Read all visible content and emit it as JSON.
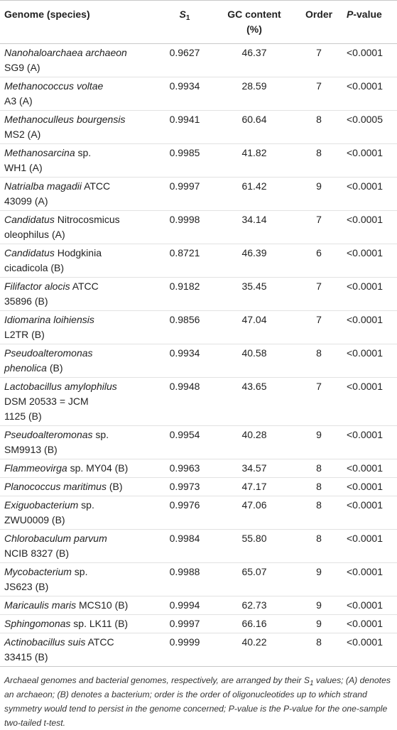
{
  "headers": {
    "genome": "Genome (species)",
    "s_letter": "S",
    "s_sub": "1",
    "gc_line1": "GC content",
    "gc_line2": "(%)",
    "order": "Order",
    "p_italic": "P",
    "p_rest": "-value"
  },
  "rows": [
    {
      "parts": [
        {
          "t": "Nanohaloarchaea archaeon",
          "i": true
        },
        {
          "t": "SG9 (A)",
          "br": true
        }
      ],
      "s1": "0.9627",
      "gc": "46.37",
      "order": "7",
      "p": "<0.0001"
    },
    {
      "parts": [
        {
          "t": "Methanococcus voltae",
          "i": true
        },
        {
          "t": "A3 (A)",
          "br": true
        }
      ],
      "s1": "0.9934",
      "gc": "28.59",
      "order": "7",
      "p": "<0.0001"
    },
    {
      "parts": [
        {
          "t": "Methanoculleus bourgensis",
          "i": true
        },
        {
          "t": "MS2 (A)",
          "br": true
        }
      ],
      "s1": "0.9941",
      "gc": "60.64",
      "order": "8",
      "p": "<0.0005"
    },
    {
      "parts": [
        {
          "t": "Methanosarcina",
          "i": true
        },
        {
          "t": " sp."
        },
        {
          "t": "WH1 (A)",
          "br": true
        }
      ],
      "s1": "0.9985",
      "gc": "41.82",
      "order": "8",
      "p": "<0.0001"
    },
    {
      "parts": [
        {
          "t": "Natrialba magadii",
          "i": true
        },
        {
          "t": " ATCC"
        },
        {
          "t": "43099 (A)",
          "br": true
        }
      ],
      "s1": "0.9997",
      "gc": "61.42",
      "order": "9",
      "p": "<0.0001"
    },
    {
      "parts": [
        {
          "t": "Candidatus",
          "i": true
        },
        {
          "t": " Nitrocosmicus"
        },
        {
          "t": "oleophilus (A)",
          "br": true
        }
      ],
      "s1": "0.9998",
      "gc": "34.14",
      "order": "7",
      "p": "<0.0001"
    },
    {
      "parts": [
        {
          "t": "Candidatus",
          "i": true
        },
        {
          "t": " Hodgkinia"
        },
        {
          "t": "cicadicola (B)",
          "br": true
        }
      ],
      "s1": "0.8721",
      "gc": "46.39",
      "order": "6",
      "p": "<0.0001"
    },
    {
      "parts": [
        {
          "t": "Filifactor alocis",
          "i": true
        },
        {
          "t": " ATCC"
        },
        {
          "t": "35896 (B)",
          "br": true
        }
      ],
      "s1": "0.9182",
      "gc": "35.45",
      "order": "7",
      "p": "<0.0001"
    },
    {
      "parts": [
        {
          "t": "Idiomarina loihiensis",
          "i": true
        },
        {
          "t": "L2TR (B)",
          "br": true
        }
      ],
      "s1": "0.9856",
      "gc": "47.04",
      "order": "7",
      "p": "<0.0001"
    },
    {
      "parts": [
        {
          "t": "Pseudoalteromonas",
          "i": true
        },
        {
          "t": "phenolica",
          "i": true,
          "br": true
        },
        {
          "t": " (B)"
        }
      ],
      "s1": "0.9934",
      "gc": "40.58",
      "order": "8",
      "p": "<0.0001"
    },
    {
      "parts": [
        {
          "t": "Lactobacillus amylophilus",
          "i": true
        },
        {
          "t": "DSM 20533 = JCM",
          "br": true
        },
        {
          "t": "1125 (B)",
          "br": true
        }
      ],
      "s1": "0.9948",
      "gc": "43.65",
      "order": "7",
      "p": "<0.0001"
    },
    {
      "parts": [
        {
          "t": "Pseudoalteromonas",
          "i": true
        },
        {
          "t": " sp."
        },
        {
          "t": "SM9913 (B)",
          "br": true
        }
      ],
      "s1": "0.9954",
      "gc": "40.28",
      "order": "9",
      "p": "<0.0001"
    },
    {
      "parts": [
        {
          "t": "Flammeovirga",
          "i": true
        },
        {
          "t": " sp. MY04 (B)"
        }
      ],
      "s1": "0.9963",
      "gc": "34.57",
      "order": "8",
      "p": "<0.0001"
    },
    {
      "parts": [
        {
          "t": "Planococcus maritimus",
          "i": true
        },
        {
          "t": " (B)"
        }
      ],
      "s1": "0.9973",
      "gc": "47.17",
      "order": "8",
      "p": "<0.0001"
    },
    {
      "parts": [
        {
          "t": "Exiguobacterium",
          "i": true
        },
        {
          "t": " sp."
        },
        {
          "t": "ZWU0009 (B)",
          "br": true
        }
      ],
      "s1": "0.9976",
      "gc": "47.06",
      "order": "8",
      "p": "<0.0001"
    },
    {
      "parts": [
        {
          "t": "Chlorobaculum parvum",
          "i": true
        },
        {
          "t": "NCIB 8327 (B)",
          "br": true
        }
      ],
      "s1": "0.9984",
      "gc": "55.80",
      "order": "8",
      "p": "<0.0001"
    },
    {
      "parts": [
        {
          "t": "Mycobacterium",
          "i": true
        },
        {
          "t": " sp."
        },
        {
          "t": "JS623 (B)",
          "br": true
        }
      ],
      "s1": "0.9988",
      "gc": "65.07",
      "order": "9",
      "p": "<0.0001"
    },
    {
      "parts": [
        {
          "t": "Maricaulis maris",
          "i": true
        },
        {
          "t": " MCS10 (B)"
        }
      ],
      "s1": "0.9994",
      "gc": "62.73",
      "order": "9",
      "p": "<0.0001"
    },
    {
      "parts": [
        {
          "t": "Sphingomonas",
          "i": true
        },
        {
          "t": " sp. LK11 (B)"
        }
      ],
      "s1": "0.9997",
      "gc": "66.16",
      "order": "9",
      "p": "<0.0001"
    },
    {
      "parts": [
        {
          "t": "Actinobacillus suis",
          "i": true
        },
        {
          "t": " ATCC"
        },
        {
          "t": "33415 (B)",
          "br": true
        }
      ],
      "s1": "0.9999",
      "gc": "40.22",
      "order": "8",
      "p": "<0.0001"
    }
  ],
  "footnote": {
    "a": "Archaeal genomes and bacterial genomes, respectively, are arranged by their ",
    "s_letter": "S",
    "s_sub": "1",
    "b": " values; (A) denotes an archaeon; (B) denotes a bacterium; order is the order of oligonucleotides up to which strand symmetry would tend to persist in the genome concerned; ",
    "p_letter": "P",
    "c": "-value is the ",
    "p_letter2": "P",
    "d": "-value for the one-sample two-tailed t-test."
  }
}
